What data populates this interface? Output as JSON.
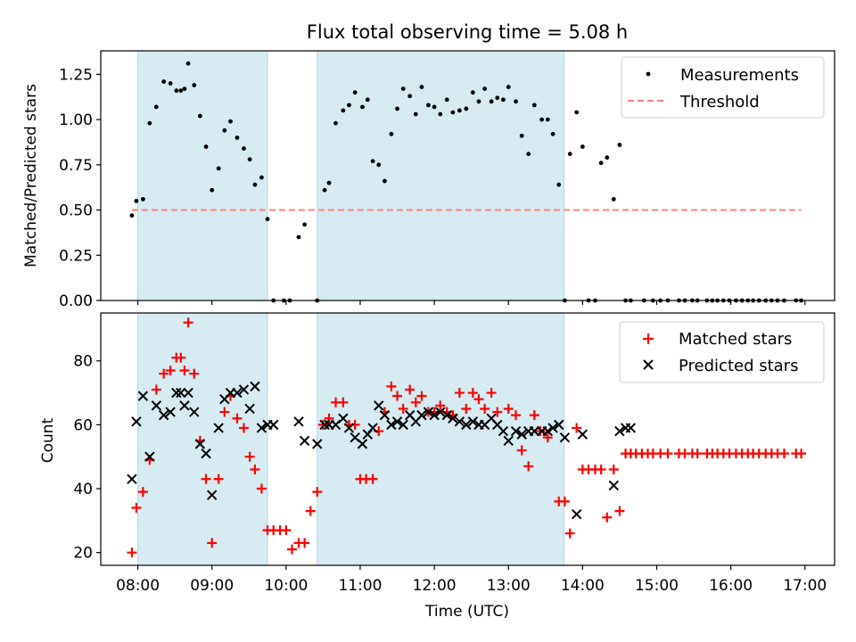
{
  "chart_data": [
    {
      "type": "scatter",
      "title": "Flux total observing time = 5.08 h",
      "xlabel": "",
      "ylabel": "Matched/Predicted stars",
      "xlim": [
        7.5,
        17.4
      ],
      "ylim": [
        0,
        1.38
      ],
      "xticks": [
        8,
        9,
        10,
        11,
        12,
        13,
        14,
        15,
        16,
        17
      ],
      "yticks": [
        0.0,
        0.25,
        0.5,
        0.75,
        1.0,
        1.25
      ],
      "ytick_labels": [
        "0.00",
        "0.25",
        "0.50",
        "0.75",
        "1.00",
        "1.25"
      ],
      "shaded_intervals": [
        [
          8.0,
          9.75
        ],
        [
          10.42,
          13.75
        ]
      ],
      "shade_color": "#add8e6",
      "legend_position": "upper right",
      "series": [
        {
          "name": "Measurements",
          "marker": "dot",
          "color": "#000000",
          "x": [
            7.92,
            7.98,
            8.07,
            8.16,
            8.25,
            8.35,
            8.44,
            8.52,
            8.58,
            8.63,
            8.68,
            8.76,
            8.84,
            8.92,
            9.0,
            9.09,
            9.17,
            9.25,
            9.34,
            9.43,
            9.51,
            9.58,
            9.67,
            9.75,
            9.83,
            9.97,
            10.05,
            10.17,
            10.25,
            10.42,
            10.52,
            10.58,
            10.67,
            10.77,
            10.85,
            10.93,
            11.03,
            11.1,
            11.17,
            11.25,
            11.33,
            11.42,
            11.5,
            11.58,
            11.67,
            11.75,
            11.83,
            11.92,
            12.0,
            12.08,
            12.17,
            12.25,
            12.34,
            12.43,
            12.52,
            12.6,
            12.68,
            12.77,
            12.85,
            12.93,
            13.0,
            13.1,
            13.18,
            13.27,
            13.35,
            13.45,
            13.53,
            13.6,
            13.68,
            13.76,
            13.83,
            13.92,
            14.0,
            14.08,
            14.17,
            14.25,
            14.33,
            14.42,
            14.5,
            14.58,
            14.65,
            14.83,
            14.95,
            15.05,
            15.15,
            15.3,
            15.38,
            15.48,
            15.55,
            15.68,
            15.75,
            15.82,
            15.9,
            15.98,
            16.07,
            16.15,
            16.23,
            16.3,
            16.38,
            16.47,
            16.55,
            16.63,
            16.72,
            16.88,
            16.95
          ],
          "y": [
            0.47,
            0.55,
            0.56,
            0.98,
            1.07,
            1.21,
            1.2,
            1.16,
            1.16,
            1.17,
            1.31,
            1.19,
            1.02,
            0.85,
            0.61,
            0.73,
            0.94,
            0.99,
            0.9,
            0.84,
            0.78,
            0.64,
            0.68,
            0.45,
            0.0,
            0.0,
            0.0,
            0.35,
            0.42,
            0.0,
            0.61,
            0.65,
            0.98,
            1.05,
            1.08,
            1.15,
            1.07,
            1.11,
            0.77,
            0.75,
            0.66,
            0.92,
            1.06,
            1.17,
            1.13,
            1.03,
            1.18,
            1.08,
            1.07,
            1.03,
            1.11,
            1.04,
            1.05,
            1.06,
            1.15,
            1.1,
            1.17,
            1.1,
            1.12,
            1.11,
            1.18,
            1.1,
            0.91,
            0.81,
            1.08,
            1.0,
            1.0,
            0.92,
            0.64,
            0.0,
            0.81,
            1.04,
            0.85,
            0.0,
            0.0,
            0.76,
            0.79,
            0.56,
            0.86,
            0.0,
            0.0,
            0.0,
            0.0,
            0.0,
            0.0,
            0.0,
            0.0,
            0.0,
            0.0,
            0.0,
            0.0,
            0.0,
            0.0,
            0.0,
            0.0,
            0.0,
            0.0,
            0.0,
            0.0,
            0.0,
            0.0,
            0.0,
            0.0,
            0.0,
            0.0
          ]
        },
        {
          "name": "Threshold",
          "marker": "dashed-line",
          "color": "#ff7f7f",
          "x": [
            7.92,
            16.95
          ],
          "y": [
            0.5,
            0.5
          ]
        }
      ]
    },
    {
      "type": "scatter",
      "title": "",
      "xlabel": "Time (UTC)",
      "ylabel": "Count",
      "xlim": [
        7.5,
        17.4
      ],
      "ylim": [
        16,
        95
      ],
      "xticks": [
        8,
        9,
        10,
        11,
        12,
        13,
        14,
        15,
        16,
        17
      ],
      "xtick_labels": [
        "08:00",
        "09:00",
        "10:00",
        "11:00",
        "12:00",
        "13:00",
        "14:00",
        "15:00",
        "16:00",
        "17:00"
      ],
      "yticks": [
        20,
        40,
        60,
        80
      ],
      "ytick_labels": [
        "20",
        "40",
        "60",
        "80"
      ],
      "shaded_intervals": [
        [
          8.0,
          9.75
        ],
        [
          10.42,
          13.75
        ]
      ],
      "shade_color": "#add8e6",
      "legend_position": "upper right",
      "series": [
        {
          "name": "Matched stars",
          "marker": "plus",
          "color": "#ff0000",
          "x": [
            7.92,
            7.98,
            8.07,
            8.16,
            8.25,
            8.35,
            8.44,
            8.52,
            8.58,
            8.63,
            8.68,
            8.76,
            8.84,
            8.92,
            9.0,
            9.09,
            9.17,
            9.25,
            9.34,
            9.43,
            9.51,
            9.58,
            9.67,
            9.75,
            9.83,
            9.92,
            10.0,
            10.08,
            10.17,
            10.25,
            10.33,
            10.42,
            10.5,
            10.58,
            10.67,
            10.77,
            10.85,
            10.93,
            11.0,
            11.08,
            11.17,
            11.25,
            11.33,
            11.42,
            11.5,
            11.58,
            11.67,
            11.75,
            11.83,
            11.92,
            12.0,
            12.08,
            12.17,
            12.25,
            12.34,
            12.43,
            12.52,
            12.6,
            12.68,
            12.77,
            12.85,
            13.0,
            13.1,
            13.18,
            13.27,
            13.35,
            13.43,
            13.53,
            13.68,
            13.76,
            13.83,
            13.92,
            14.0,
            14.08,
            14.17,
            14.25,
            14.33,
            14.42,
            14.5,
            14.58,
            14.65,
            14.72,
            14.8,
            14.88,
            14.95,
            15.05,
            15.15,
            15.3,
            15.38,
            15.48,
            15.55,
            15.68,
            15.75,
            15.82,
            15.9,
            15.98,
            16.07,
            16.15,
            16.23,
            16.3,
            16.38,
            16.47,
            16.55,
            16.63,
            16.72,
            16.88,
            16.95
          ],
          "y": [
            20,
            34,
            39,
            49,
            71,
            76,
            77,
            81,
            81,
            77,
            92,
            76,
            55,
            43,
            23,
            43,
            64,
            69,
            62,
            59,
            50,
            46,
            40,
            27,
            27,
            27,
            27,
            21,
            23,
            23,
            33,
            39,
            60,
            62,
            67,
            67,
            60,
            60,
            43,
            43,
            43,
            58,
            64,
            72,
            69,
            65,
            71,
            67,
            69,
            64,
            64,
            66,
            64,
            63,
            70,
            65,
            70,
            68,
            65,
            70,
            64,
            65,
            63,
            52,
            47,
            63,
            58,
            56,
            36,
            36,
            26,
            59,
            46,
            46,
            46,
            46,
            31,
            46,
            33,
            51,
            51,
            51,
            51,
            51,
            51,
            51,
            51,
            51,
            51,
            51,
            51,
            51,
            51,
            51,
            51,
            51,
            51,
            51,
            51,
            51,
            51,
            51,
            51,
            51,
            51,
            51,
            51
          ]
        },
        {
          "name": "Predicted stars",
          "marker": "x",
          "color": "#000000",
          "x": [
            7.92,
            7.98,
            8.07,
            8.16,
            8.25,
            8.35,
            8.44,
            8.52,
            8.58,
            8.63,
            8.68,
            8.76,
            8.84,
            8.92,
            9.0,
            9.09,
            9.17,
            9.25,
            9.34,
            9.43,
            9.51,
            9.58,
            9.67,
            9.75,
            9.83,
            10.17,
            10.25,
            10.42,
            10.52,
            10.58,
            10.67,
            10.77,
            10.85,
            10.93,
            11.03,
            11.1,
            11.17,
            11.25,
            11.33,
            11.42,
            11.5,
            11.58,
            11.67,
            11.75,
            11.83,
            11.92,
            12.0,
            12.08,
            12.17,
            12.25,
            12.34,
            12.43,
            12.52,
            12.6,
            12.68,
            12.77,
            12.85,
            12.93,
            13.0,
            13.1,
            13.18,
            13.27,
            13.35,
            13.45,
            13.53,
            13.6,
            13.68,
            13.76,
            13.92,
            14.0,
            14.42,
            14.5,
            14.58,
            14.65
          ],
          "y": [
            43,
            61,
            69,
            50,
            66,
            63,
            64,
            70,
            70,
            66,
            70,
            64,
            54,
            51,
            38,
            59,
            68,
            70,
            70,
            71,
            65,
            72,
            59,
            60,
            60,
            61,
            55,
            54,
            60,
            60,
            60,
            62,
            59,
            56,
            54,
            57,
            59,
            66,
            63,
            60,
            61,
            60,
            63,
            61,
            63,
            64,
            63,
            64,
            63,
            62,
            61,
            60,
            61,
            60,
            60,
            62,
            60,
            58,
            55,
            58,
            57,
            58,
            58,
            58,
            58,
            59,
            60,
            56,
            32,
            57,
            41,
            58,
            59,
            59
          ]
        }
      ]
    }
  ]
}
